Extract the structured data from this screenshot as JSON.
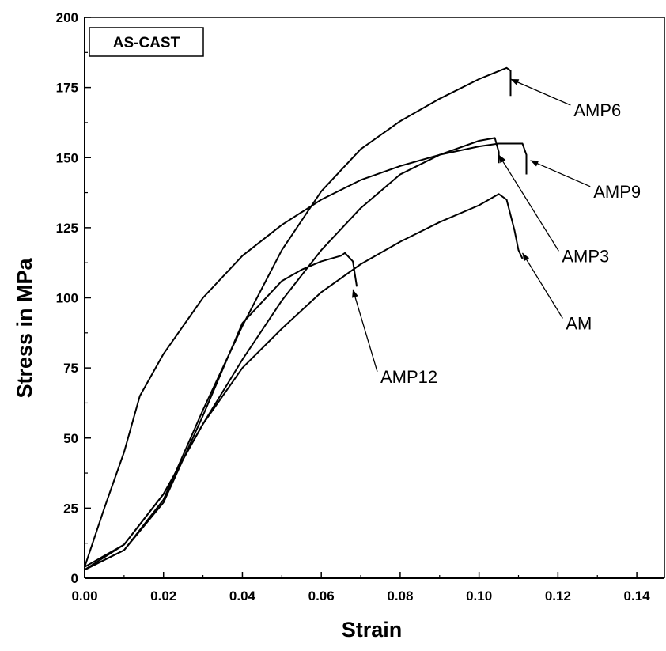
{
  "chart_data": {
    "type": "line",
    "title": "",
    "inset_label": "AS-CAST",
    "xlabel": "Strain",
    "ylabel": "Stress in MPa",
    "xlim": [
      0,
      0.147
    ],
    "ylim": [
      0,
      200
    ],
    "x_ticks": [
      "0.00",
      "0.02",
      "0.04",
      "0.06",
      "0.08",
      "0.10",
      "0.12",
      "0.14"
    ],
    "x_tick_values": [
      0,
      0.02,
      0.04,
      0.06,
      0.08,
      0.1,
      0.12,
      0.14
    ],
    "y_ticks": [
      "0",
      "25",
      "50",
      "75",
      "100",
      "125",
      "150",
      "175",
      "200"
    ],
    "y_tick_values": [
      0,
      25,
      50,
      75,
      100,
      125,
      150,
      175,
      200
    ],
    "grid": false,
    "series": [
      {
        "name": "AMP6",
        "points": [
          [
            0,
            3
          ],
          [
            0.01,
            10
          ],
          [
            0.02,
            28
          ],
          [
            0.03,
            60
          ],
          [
            0.04,
            90
          ],
          [
            0.05,
            117
          ],
          [
            0.06,
            138
          ],
          [
            0.07,
            153
          ],
          [
            0.08,
            163
          ],
          [
            0.09,
            171
          ],
          [
            0.1,
            178
          ],
          [
            0.107,
            182
          ],
          [
            0.108,
            181
          ],
          [
            0.108,
            172
          ]
        ]
      },
      {
        "name": "AMP9",
        "points": [
          [
            0,
            4
          ],
          [
            0.005,
            25
          ],
          [
            0.01,
            45
          ],
          [
            0.014,
            65
          ],
          [
            0.02,
            80
          ],
          [
            0.03,
            100
          ],
          [
            0.04,
            115
          ],
          [
            0.05,
            126
          ],
          [
            0.06,
            135
          ],
          [
            0.07,
            142
          ],
          [
            0.08,
            147
          ],
          [
            0.09,
            151
          ],
          [
            0.1,
            154
          ],
          [
            0.105,
            155
          ],
          [
            0.111,
            155
          ],
          [
            0.112,
            151
          ],
          [
            0.112,
            144
          ]
        ]
      },
      {
        "name": "AMP3",
        "points": [
          [
            0,
            3
          ],
          [
            0.01,
            12
          ],
          [
            0.02,
            30
          ],
          [
            0.03,
            55
          ],
          [
            0.04,
            78
          ],
          [
            0.05,
            99
          ],
          [
            0.06,
            117
          ],
          [
            0.07,
            132
          ],
          [
            0.08,
            144
          ],
          [
            0.09,
            151
          ],
          [
            0.1,
            156
          ],
          [
            0.104,
            157
          ],
          [
            0.105,
            152
          ],
          [
            0.105,
            148
          ]
        ]
      },
      {
        "name": "AM",
        "points": [
          [
            0,
            4
          ],
          [
            0.01,
            12
          ],
          [
            0.02,
            30
          ],
          [
            0.03,
            55
          ],
          [
            0.04,
            75
          ],
          [
            0.05,
            89
          ],
          [
            0.06,
            102
          ],
          [
            0.07,
            112
          ],
          [
            0.08,
            120
          ],
          [
            0.09,
            127
          ],
          [
            0.1,
            133
          ],
          [
            0.105,
            137
          ],
          [
            0.107,
            135
          ],
          [
            0.109,
            124
          ],
          [
            0.11,
            117
          ],
          [
            0.111,
            114
          ]
        ]
      },
      {
        "name": "AMP12",
        "points": [
          [
            0,
            3
          ],
          [
            0.01,
            10
          ],
          [
            0.02,
            27
          ],
          [
            0.03,
            58
          ],
          [
            0.04,
            91
          ],
          [
            0.05,
            106
          ],
          [
            0.055,
            110
          ],
          [
            0.06,
            113
          ],
          [
            0.065,
            115
          ],
          [
            0.066,
            116
          ],
          [
            0.068,
            113
          ],
          [
            0.069,
            104
          ]
        ]
      }
    ],
    "annotations": [
      {
        "text": "AMP6",
        "tip": [
          0.108,
          178
        ],
        "label": [
          0.124,
          167
        ]
      },
      {
        "text": "AMP9",
        "tip": [
          0.113,
          149
        ],
        "label": [
          0.129,
          138
        ]
      },
      {
        "text": "AMP3",
        "tip": [
          0.105,
          151
        ],
        "label": [
          0.121,
          115
        ]
      },
      {
        "text": "AM",
        "tip": [
          0.111,
          116
        ],
        "label": [
          0.122,
          91
        ]
      },
      {
        "text": "AMP12",
        "tip": [
          0.068,
          103
        ],
        "label": [
          0.075,
          72
        ]
      }
    ]
  }
}
